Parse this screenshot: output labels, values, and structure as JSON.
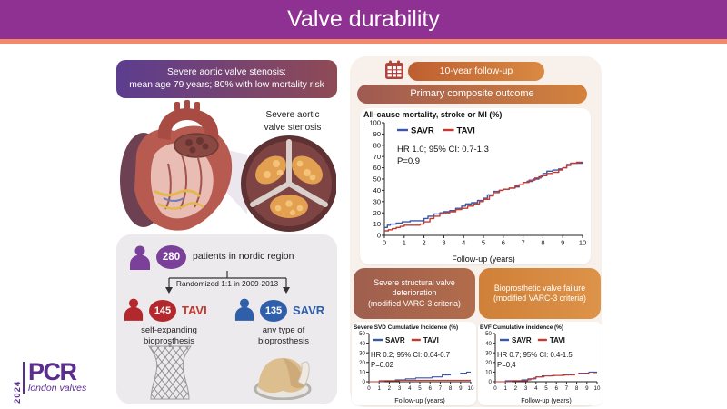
{
  "header": {
    "title": "Valve durability"
  },
  "logo": {
    "year": "2024",
    "brand": "PCR",
    "tagline": "london valves"
  },
  "left": {
    "top_badge": {
      "line1": "Severe aortic valve stenosis:",
      "line2": "mean age 79 years; 80% with low mortality risk"
    },
    "heart_label": {
      "line1": "Severe aortic",
      "line2": "valve stenosis"
    },
    "cohort": {
      "total": "280",
      "total_desc": "patients in nordic region",
      "randomization": "Randomized 1:1 in 2009-2013",
      "tavi": {
        "count": "145",
        "label": "TAVI",
        "desc1": "self-expanding",
        "desc2": "bioprosthesis"
      },
      "savr": {
        "count": "135",
        "label": "SAVR",
        "desc1": "any type of",
        "desc2": "bioprosthesis"
      }
    }
  },
  "right": {
    "followup_badge": "10-year follow-up",
    "primary_badge": "Primary composite outcome",
    "svd_badge": {
      "line1": "Severe structural valve",
      "line2": "deterioration",
      "line3": "(modified VARC-3 criteria)"
    },
    "bvf_badge": {
      "line1": "Bioprosthetic valve failure",
      "line2": "(modified VARC-3 criteria)"
    }
  },
  "colors": {
    "header_purple": "#8F3192",
    "accent_orange": "#F4886A",
    "savr_blue": "#3A57A8",
    "tavi_red": "#C23B2E",
    "cohort_purple": "#7B4099",
    "arm_red": "#B3282D",
    "arm_blue": "#2F5FA8",
    "logo_purple": "#5B2D8E"
  },
  "chart_data": [
    {
      "type": "line",
      "style": "step",
      "title": "All-cause mortality, stroke or MI (%)",
      "xlabel": "Follow-up (years)",
      "xlim": [
        0,
        10
      ],
      "ylim": [
        0,
        100
      ],
      "xticks": [
        0,
        1,
        2,
        3,
        4,
        5,
        6,
        7,
        8,
        9,
        10
      ],
      "yticks": [
        0,
        10,
        20,
        30,
        40,
        50,
        60,
        70,
        80,
        90,
        100
      ],
      "legend_position": "top-left-inside",
      "grid": false,
      "annotation": [
        "HR 1.0; 95% CI: 0.7-1.3",
        "P=0.9"
      ],
      "series": [
        {
          "name": "SAVR",
          "color": "#3A57A8",
          "points": [
            [
              0,
              7
            ],
            [
              0.15,
              9
            ],
            [
              0.3,
              10
            ],
            [
              0.6,
              11
            ],
            [
              0.9,
              12
            ],
            [
              1.3,
              13
            ],
            [
              1.7,
              13
            ],
            [
              2.0,
              15
            ],
            [
              2.2,
              17
            ],
            [
              2.5,
              19
            ],
            [
              2.8,
              20
            ],
            [
              3.0,
              21
            ],
            [
              3.3,
              22
            ],
            [
              3.6,
              24
            ],
            [
              3.9,
              26
            ],
            [
              4.1,
              28
            ],
            [
              4.4,
              29
            ],
            [
              4.7,
              31
            ],
            [
              5.0,
              33
            ],
            [
              5.2,
              36
            ],
            [
              5.5,
              39
            ],
            [
              5.8,
              40
            ],
            [
              6.0,
              41
            ],
            [
              6.3,
              42
            ],
            [
              6.6,
              43
            ],
            [
              6.8,
              45
            ],
            [
              7.0,
              47
            ],
            [
              7.2,
              48
            ],
            [
              7.5,
              50
            ],
            [
              7.8,
              52
            ],
            [
              8.0,
              55
            ],
            [
              8.2,
              57
            ],
            [
              8.5,
              58
            ],
            [
              8.8,
              59
            ],
            [
              9.0,
              60
            ],
            [
              9.2,
              63
            ],
            [
              9.4,
              64
            ],
            [
              9.7,
              64
            ],
            [
              10,
              65
            ]
          ]
        },
        {
          "name": "TAVI",
          "color": "#C23B2E",
          "points": [
            [
              0,
              4
            ],
            [
              0.2,
              5
            ],
            [
              0.4,
              6
            ],
            [
              0.6,
              7
            ],
            [
              0.8,
              8
            ],
            [
              1.0,
              9
            ],
            [
              1.5,
              9
            ],
            [
              1.8,
              10
            ],
            [
              2.0,
              12
            ],
            [
              2.3,
              15
            ],
            [
              2.5,
              17
            ],
            [
              2.8,
              19
            ],
            [
              3.0,
              20
            ],
            [
              3.3,
              21
            ],
            [
              3.6,
              23
            ],
            [
              3.9,
              24
            ],
            [
              4.2,
              26
            ],
            [
              4.5,
              28
            ],
            [
              4.8,
              30
            ],
            [
              5.0,
              32
            ],
            [
              5.3,
              35
            ],
            [
              5.5,
              38
            ],
            [
              5.8,
              40
            ],
            [
              6.0,
              41
            ],
            [
              6.3,
              42
            ],
            [
              6.6,
              44
            ],
            [
              6.8,
              45
            ],
            [
              7.0,
              47
            ],
            [
              7.3,
              49
            ],
            [
              7.6,
              51
            ],
            [
              7.9,
              53
            ],
            [
              8.2,
              55
            ],
            [
              8.5,
              56
            ],
            [
              8.8,
              58
            ],
            [
              9.0,
              60
            ],
            [
              9.2,
              62
            ],
            [
              9.4,
              64
            ],
            [
              9.7,
              65
            ],
            [
              10,
              65
            ]
          ]
        }
      ]
    },
    {
      "type": "line",
      "style": "step",
      "title": "Severe SVD Cumulative Incidence (%)",
      "xlabel": "Follow-up (years)",
      "xlim": [
        0,
        10
      ],
      "ylim": [
        0,
        50
      ],
      "xticks": [
        0,
        1,
        2,
        3,
        4,
        5,
        6,
        7,
        8,
        9,
        10
      ],
      "yticks": [
        0,
        10,
        20,
        30,
        40,
        50
      ],
      "legend_position": "top-left-inside",
      "grid": false,
      "annotation": [
        "HR 0.2; 95% CI: 0.04-0.7",
        "P=0.02"
      ],
      "series": [
        {
          "name": "SAVR",
          "color": "#3A57A8",
          "points": [
            [
              0,
              0
            ],
            [
              1,
              0
            ],
            [
              1.5,
              1
            ],
            [
              2.2,
              1
            ],
            [
              2.6,
              2
            ],
            [
              3.4,
              2
            ],
            [
              3.6,
              3
            ],
            [
              4.4,
              3
            ],
            [
              4.6,
              4
            ],
            [
              6.0,
              4
            ],
            [
              6.2,
              5
            ],
            [
              7.0,
              5
            ],
            [
              7.2,
              7
            ],
            [
              7.8,
              7
            ],
            [
              8.0,
              8
            ],
            [
              8.8,
              8
            ],
            [
              9.0,
              9
            ],
            [
              9.4,
              9
            ],
            [
              9.6,
              10
            ],
            [
              10,
              10
            ]
          ]
        },
        {
          "name": "TAVI",
          "color": "#C23B2E",
          "points": [
            [
              0,
              0
            ],
            [
              0.8,
              0
            ],
            [
              1.0,
              1
            ],
            [
              2.8,
              1
            ],
            [
              3.0,
              1.5
            ],
            [
              10,
              1.5
            ]
          ]
        }
      ]
    },
    {
      "type": "line",
      "style": "step",
      "title": "BVF Cumulative incidence (%)",
      "xlabel": "Follow-up (years)",
      "xlim": [
        0,
        10
      ],
      "ylim": [
        0,
        50
      ],
      "xticks": [
        0,
        1,
        2,
        3,
        4,
        5,
        6,
        7,
        8,
        9,
        10
      ],
      "yticks": [
        0,
        10,
        20,
        30,
        40,
        50
      ],
      "legend_position": "top-left-inside",
      "grid": false,
      "annotation": [
        "HR 0.7; 95% CI: 0.4-1.5",
        "P=0,4"
      ],
      "series": [
        {
          "name": "SAVR",
          "color": "#3A57A8",
          "points": [
            [
              0,
              0
            ],
            [
              0.9,
              0
            ],
            [
              1.0,
              1
            ],
            [
              2.4,
              1
            ],
            [
              2.6,
              2
            ],
            [
              3.0,
              2
            ],
            [
              3.2,
              3
            ],
            [
              3.8,
              3
            ],
            [
              4.0,
              5
            ],
            [
              4.4,
              5
            ],
            [
              4.6,
              6
            ],
            [
              5.4,
              6
            ],
            [
              5.6,
              6.5
            ],
            [
              6.4,
              6.5
            ],
            [
              6.6,
              7
            ],
            [
              7.0,
              7
            ],
            [
              7.2,
              8
            ],
            [
              8.0,
              8
            ],
            [
              8.2,
              9
            ],
            [
              9.0,
              9
            ],
            [
              9.2,
              10
            ],
            [
              10,
              10
            ]
          ]
        },
        {
          "name": "TAVI",
          "color": "#C23B2E",
          "points": [
            [
              0,
              0
            ],
            [
              1.4,
              0
            ],
            [
              1.6,
              1
            ],
            [
              3.0,
              1
            ],
            [
              3.2,
              2
            ],
            [
              3.5,
              3
            ],
            [
              3.8,
              4
            ],
            [
              4.0,
              5
            ],
            [
              4.6,
              5
            ],
            [
              4.8,
              6
            ],
            [
              5.6,
              6
            ],
            [
              5.8,
              6.5
            ],
            [
              6.6,
              6.5
            ],
            [
              6.8,
              7
            ],
            [
              7.6,
              7
            ],
            [
              7.8,
              8
            ],
            [
              9.4,
              8
            ],
            [
              9.6,
              8.5
            ],
            [
              10,
              8.5
            ]
          ]
        }
      ]
    }
  ]
}
